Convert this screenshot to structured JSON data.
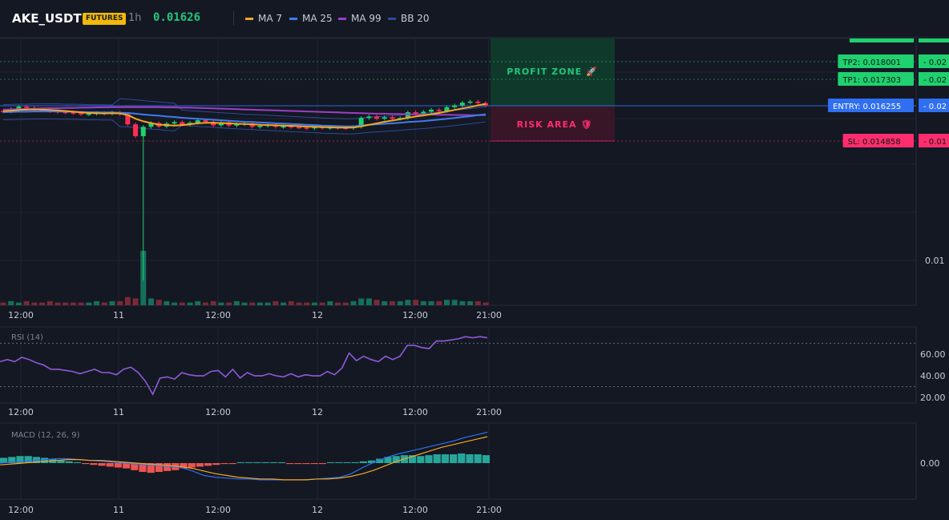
{
  "header": {
    "symbol": "AKE_USDT",
    "badge": "FUTURES",
    "timeframe": "1h",
    "last_price": "0.01626",
    "legend": [
      {
        "label": "MA 7",
        "color": "#f5a623"
      },
      {
        "label": "MA 25",
        "color": "#3d7cf0"
      },
      {
        "label": "MA 99",
        "color": "#9c3fc4"
      },
      {
        "label": "BB 20",
        "color": "#2e4a9a"
      }
    ]
  },
  "chart_data": [
    {
      "type": "candlestick",
      "title": "AKE_USDT",
      "time_labels": [
        "12:00",
        "11",
        "12:00",
        "12",
        "12:00",
        "21:00"
      ],
      "y_tick_labels": [
        "0.01"
      ],
      "levels": [
        {
          "label": "TP2: 0.018001",
          "tag": "0.02",
          "value": 0.018001,
          "color": "#1fd16f"
        },
        {
          "label": "TP1: 0.017303",
          "tag": "0.02",
          "value": 0.017303,
          "color": "#1fd16f"
        },
        {
          "label": "ENTRY: 0.016255",
          "tag": "0.02",
          "value": 0.016255,
          "color": "#2f6ff0"
        },
        {
          "label": "SL: 0.014858",
          "tag": "0.01",
          "value": 0.014858,
          "color": "#ff2d6e"
        }
      ],
      "zones": {
        "profit": "PROFIT ZONE 🚀",
        "risk": "RISK AREA 🛡"
      },
      "candles_close": [
        0.01603,
        0.01612,
        0.01622,
        0.01617,
        0.01611,
        0.01608,
        0.01604,
        0.01601,
        0.01599,
        0.01596,
        0.01592,
        0.01594,
        0.01597,
        0.01594,
        0.01599,
        0.01592,
        0.01552,
        0.01505,
        0.01542,
        0.01557,
        0.01543,
        0.01555,
        0.01561,
        0.01551,
        0.01558,
        0.01568,
        0.01562,
        0.01548,
        0.0156,
        0.01547,
        0.01552,
        0.01555,
        0.01542,
        0.01546,
        0.0155,
        0.01542,
        0.01544,
        0.01541,
        0.01539,
        0.01536,
        0.01541,
        0.01537,
        0.0154,
        0.01538,
        0.01537,
        0.01542,
        0.01577,
        0.01583,
        0.01574,
        0.0158,
        0.01574,
        0.01577,
        0.016,
        0.01595,
        0.01602,
        0.0161,
        0.01605,
        0.0162,
        0.01627,
        0.01638,
        0.01642,
        0.01636,
        0.01626
      ],
      "candles_open": [
        0.01605,
        0.01603,
        0.01612,
        0.01622,
        0.01617,
        0.01611,
        0.01608,
        0.01604,
        0.01601,
        0.01599,
        0.01596,
        0.01592,
        0.01594,
        0.01597,
        0.01594,
        0.01599,
        0.01592,
        0.01552,
        0.01505,
        0.01542,
        0.01557,
        0.01543,
        0.01555,
        0.01561,
        0.01551,
        0.01558,
        0.01568,
        0.01562,
        0.01548,
        0.0156,
        0.01547,
        0.01552,
        0.01555,
        0.01542,
        0.01546,
        0.0155,
        0.01542,
        0.01544,
        0.01541,
        0.01539,
        0.01536,
        0.01541,
        0.01537,
        0.0154,
        0.01538,
        0.01537,
        0.01542,
        0.01577,
        0.01583,
        0.01574,
        0.0158,
        0.01574,
        0.01577,
        0.016,
        0.01595,
        0.01602,
        0.0161,
        0.01605,
        0.0162,
        0.01627,
        0.01638,
        0.01642,
        0.01636
      ],
      "ma7": [
        0.01604,
        0.01606,
        0.01609,
        0.0161,
        0.01611,
        0.0161,
        0.01609,
        0.01607,
        0.01605,
        0.01602,
        0.01599,
        0.01597,
        0.01596,
        0.01595,
        0.01596,
        0.01595,
        0.01589,
        0.01574,
        0.01564,
        0.01557,
        0.01551,
        0.01549,
        0.01547,
        0.01549,
        0.01552,
        0.01556,
        0.01558,
        0.01558,
        0.01557,
        0.01556,
        0.01554,
        0.01553,
        0.01552,
        0.0155,
        0.01549,
        0.01548,
        0.01547,
        0.01546,
        0.01545,
        0.01543,
        0.01542,
        0.01541,
        0.0154,
        0.01539,
        0.01539,
        0.01539,
        0.01544,
        0.0155,
        0.01556,
        0.01562,
        0.01567,
        0.01572,
        0.01578,
        0.01583,
        0.01587,
        0.01592,
        0.01597,
        0.01603,
        0.01609,
        0.01615,
        0.0162,
        0.01627,
        0.01633
      ],
      "ma25": [
        0.016,
        0.01601,
        0.01602,
        0.01602,
        0.01603,
        0.01603,
        0.01603,
        0.01603,
        0.01602,
        0.01602,
        0.01601,
        0.016,
        0.016,
        0.01599,
        0.01599,
        0.01598,
        0.01597,
        0.01594,
        0.01591,
        0.01588,
        0.01586,
        0.01583,
        0.01581,
        0.01578,
        0.01576,
        0.01574,
        0.01572,
        0.0157,
        0.01568,
        0.01566,
        0.01564,
        0.01562,
        0.01561,
        0.01559,
        0.01558,
        0.01556,
        0.01555,
        0.01553,
        0.01552,
        0.0155,
        0.01549,
        0.01547,
        0.01546,
        0.01545,
        0.01544,
        0.01544,
        0.01547,
        0.0155,
        0.01552,
        0.01554,
        0.01556,
        0.01558,
        0.01561,
        0.01563,
        0.01565,
        0.01568,
        0.01571,
        0.01574,
        0.01577,
        0.01581,
        0.01584,
        0.01588,
        0.01592
      ],
      "ma99": [
        0.0161,
        0.01611,
        0.01612,
        0.01613,
        0.01614,
        0.01615,
        0.01616,
        0.01616,
        0.01617,
        0.01617,
        0.01618,
        0.01618,
        0.01619,
        0.01619,
        0.0162,
        0.0162,
        0.0162,
        0.0162,
        0.0162,
        0.0162,
        0.0162,
        0.01619,
        0.01619,
        0.01618,
        0.01618,
        0.01617,
        0.01616,
        0.01615,
        0.01614,
        0.01613,
        0.01612,
        0.01611,
        0.0161,
        0.01609,
        0.01608,
        0.01607,
        0.01606,
        0.01605,
        0.01604,
        0.01603,
        0.01602,
        0.01601,
        0.016,
        0.01599,
        0.01598,
        0.01597,
        0.01596,
        0.01595,
        0.01594,
        0.01594,
        0.01593,
        0.01593,
        0.01592,
        0.01592,
        0.01591,
        0.01591,
        0.0159,
        0.0159,
        0.01589,
        0.01589,
        0.01588,
        0.01588,
        0.01588
      ],
      "volume": [
        2,
        3,
        2,
        3,
        2,
        2,
        3,
        2,
        2,
        2,
        2,
        2,
        3,
        2,
        3,
        3,
        6,
        5,
        40,
        5,
        4,
        3,
        2,
        2,
        2,
        3,
        2,
        3,
        2,
        2,
        3,
        2,
        2,
        2,
        2,
        3,
        2,
        3,
        2,
        2,
        2,
        2,
        3,
        2,
        2,
        3,
        5,
        5,
        4,
        3,
        3,
        3,
        4,
        4,
        3,
        3,
        3,
        4,
        4,
        3,
        3,
        3,
        2
      ]
    },
    {
      "type": "line",
      "title": "RSI (14)",
      "y_tick_labels": [
        "60.00",
        "40.00",
        "20.00"
      ],
      "ylim": [
        15,
        85
      ],
      "reference_lines": [
        70,
        30
      ],
      "values": [
        53,
        55,
        53,
        57,
        55,
        52,
        50,
        46,
        46,
        45,
        44,
        42,
        44,
        46,
        43,
        43,
        41,
        46,
        48,
        43,
        35,
        23,
        38,
        39,
        37,
        43,
        41,
        40,
        40,
        44,
        45,
        39,
        46,
        38,
        43,
        40,
        40,
        42,
        40,
        39,
        42,
        39,
        41,
        40,
        40,
        44,
        41,
        47,
        61,
        54,
        58,
        55,
        53,
        58,
        55,
        58,
        68,
        68,
        66,
        65,
        72,
        72,
        73,
        74,
        76,
        75,
        76,
        75
      ]
    },
    {
      "type": "line",
      "title": "MACD (12, 26, 9)",
      "y_tick_labels": [
        "0.00"
      ],
      "series": [
        {
          "values": [
            0.0,
            0.1,
            0.2,
            0.3,
            0.4,
            0.5,
            0.5,
            0.4,
            0.3,
            0.2,
            0.1,
            0.0,
            -0.1,
            -0.2,
            -0.3,
            -0.4,
            -0.5,
            -0.9,
            -1.4,
            -1.6,
            -1.7,
            -1.8,
            -1.8,
            -1.9,
            -1.9,
            -1.9,
            -1.9,
            -1.9,
            -1.8,
            -1.7,
            -1.6,
            -1.2,
            -0.5,
            0.1,
            0.6,
            1.0,
            1.3,
            1.6,
            1.9,
            2.2,
            2.5,
            2.9,
            3.2,
            3.5
          ]
        },
        {
          "values": [
            -0.2,
            -0.1,
            0.0,
            0.1,
            0.2,
            0.3,
            0.4,
            0.4,
            0.3,
            0.3,
            0.2,
            0.1,
            0.0,
            -0.1,
            -0.2,
            -0.3,
            -0.4,
            -0.6,
            -0.9,
            -1.2,
            -1.4,
            -1.6,
            -1.7,
            -1.8,
            -1.8,
            -1.9,
            -1.9,
            -1.9,
            -1.8,
            -1.8,
            -1.7,
            -1.5,
            -1.2,
            -0.8,
            -0.3,
            0.2,
            0.6,
            1.0,
            1.4,
            1.8,
            2.1,
            2.4,
            2.7,
            3.0
          ]
        }
      ],
      "histogram": [
        0.6,
        0.7,
        0.8,
        0.8,
        0.7,
        0.6,
        0.5,
        0.3,
        0.2,
        0.1,
        -0.1,
        -0.2,
        -0.3,
        -0.4,
        -0.5,
        -0.6,
        -0.8,
        -1.0,
        -1.1,
        -1.0,
        -0.9,
        -0.8,
        -0.6,
        -0.5,
        -0.4,
        -0.3,
        -0.2,
        -0.1,
        -0.1,
        0.1,
        0.1,
        0.1,
        0.1,
        0.1,
        0.1,
        -0.1,
        -0.1,
        -0.1,
        -0.1,
        -0.1,
        0.1,
        0.1,
        0.1,
        0.1,
        0.2,
        0.3,
        0.5,
        0.7,
        0.8,
        0.9,
        0.9,
        0.8,
        0.9,
        1.0,
        1.0,
        1.0,
        1.1,
        1.0,
        1.0,
        0.9
      ]
    }
  ]
}
